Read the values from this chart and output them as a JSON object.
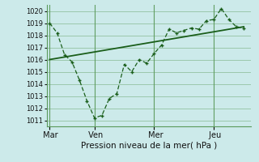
{
  "bg_color": "#cceaea",
  "grid_color": "#5a9a5a",
  "line_color": "#1a5e1a",
  "xlabel": "Pression niveau de la mer( hPa )",
  "ylim": [
    1010.5,
    1020.5
  ],
  "yticks": [
    1011,
    1012,
    1013,
    1014,
    1015,
    1016,
    1017,
    1018,
    1019,
    1020
  ],
  "day_labels": [
    " Mar",
    " Ven",
    " Mer",
    " Jeu"
  ],
  "day_positions": [
    0,
    3.0,
    7.0,
    11.0
  ],
  "xlim": [
    -0.2,
    13.5
  ],
  "line1_x": [
    0,
    0.5,
    1.0,
    1.5,
    2.0,
    2.5,
    3.0,
    3.5,
    4.0,
    4.5,
    5.0,
    5.5,
    6.0,
    6.5,
    7.0,
    7.5,
    8.0,
    8.5,
    9.0,
    9.5,
    10.0,
    10.5,
    11.0,
    11.5,
    12.0,
    12.5,
    13.0
  ],
  "line1_y": [
    1019.0,
    1018.2,
    1016.4,
    1015.8,
    1014.3,
    1012.6,
    1011.2,
    1011.4,
    1012.8,
    1013.2,
    1015.6,
    1015.0,
    1016.0,
    1015.7,
    1016.5,
    1017.2,
    1018.5,
    1018.2,
    1018.4,
    1018.6,
    1018.5,
    1019.2,
    1019.3,
    1020.2,
    1019.3,
    1018.7,
    1018.6
  ],
  "line2_x": [
    0,
    13.0
  ],
  "line2_y": [
    1016.0,
    1018.7
  ],
  "spine_color": "#5a9a5a",
  "xlabel_fontsize": 7.5,
  "ytick_fontsize": 6,
  "xtick_fontsize": 7
}
